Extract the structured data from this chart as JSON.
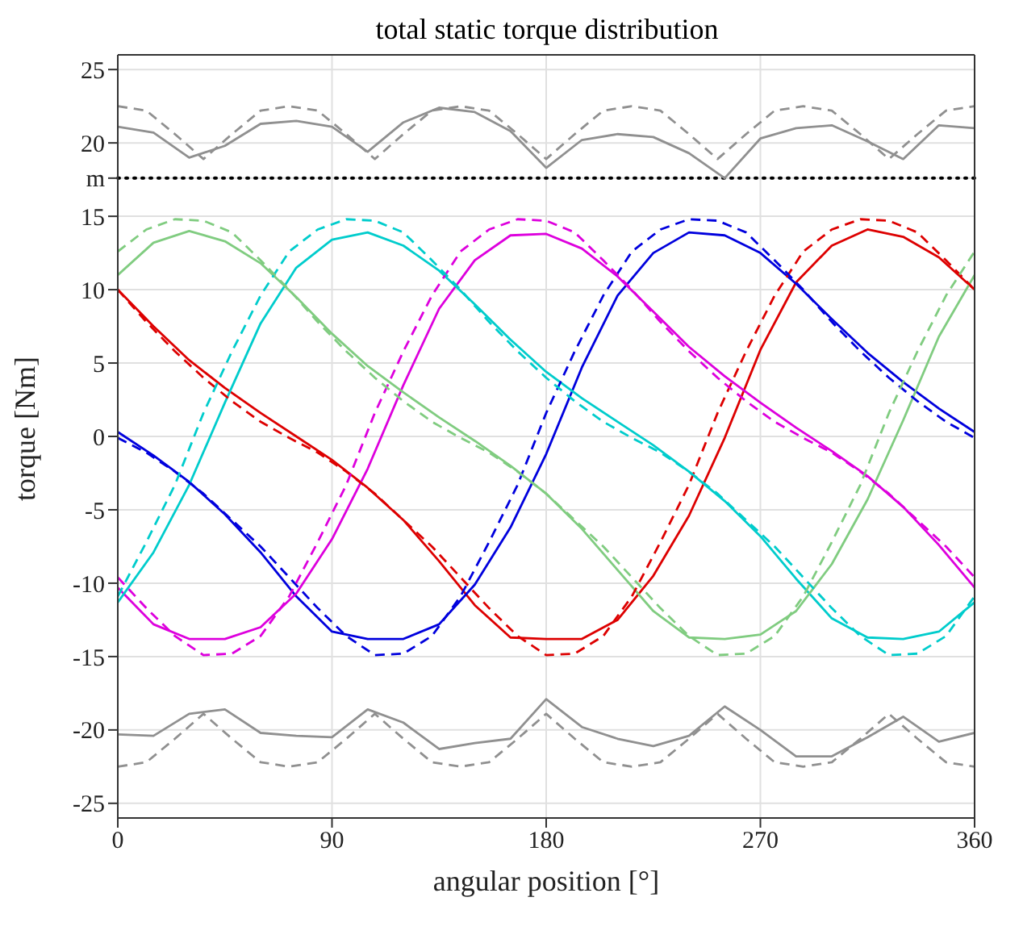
{
  "chart_data": {
    "type": "line",
    "title": "total static torque distribution",
    "xlabel": "angular position [°]",
    "ylabel": "torque [Nm]",
    "x": [
      0,
      15,
      30,
      45,
      60,
      75,
      90,
      105,
      120,
      135,
      150,
      165,
      180,
      195,
      210,
      225,
      240,
      255,
      270,
      285,
      300,
      315,
      330,
      345,
      360
    ],
    "xlim": [
      0,
      360
    ],
    "xticks": [
      0,
      90,
      180,
      270,
      360
    ],
    "ylim": [
      -26,
      26
    ],
    "yticks": [
      -25,
      -20,
      -15,
      -10,
      -5,
      0,
      5,
      10,
      15,
      {
        "value": 17.6,
        "label": "m"
      },
      20,
      25
    ],
    "grid": true,
    "legend": false,
    "marker": "none",
    "ref_lines": [
      {
        "axis": "y",
        "value": 17.6,
        "color": "#000000",
        "line_style": "dotted"
      }
    ],
    "series": [
      {
        "color": "#dd0000",
        "line_style": "solid",
        "values": [
          10,
          7.5,
          5.2,
          3.3,
          1.6,
          0,
          -1.6,
          -3.5,
          -5.7,
          -8.5,
          -11.5,
          -13.7,
          -13.8,
          -13.8,
          -12.5,
          -9.5,
          -5.4,
          -0.1,
          5.9,
          10.5,
          13.0,
          14.1,
          13.6,
          12.2,
          10
        ]
      },
      {
        "color": "#0000dd",
        "line_style": "solid",
        "values": [
          0.3,
          -1.3,
          -3.1,
          -5.3,
          -7.9,
          -10.9,
          -13.3,
          -13.8,
          -13.8,
          -12.8,
          -10.1,
          -6.2,
          -1.2,
          4.7,
          9.6,
          12.5,
          13.9,
          13.7,
          12.5,
          10.4,
          8.0,
          5.7,
          3.7,
          1.9,
          0.3
        ]
      },
      {
        "color": "#dd00dd",
        "line_style": "solid",
        "values": [
          -10.3,
          -12.8,
          -13.8,
          -13.8,
          -13.0,
          -10.7,
          -7.0,
          -2.2,
          3.5,
          8.7,
          12.0,
          13.7,
          13.8,
          12.8,
          10.9,
          8.5,
          6.1,
          4.1,
          2.3,
          0.6,
          -1.0,
          -2.7,
          -4.8,
          -7.4,
          -10.3
        ]
      },
      {
        "color": "#00cccc",
        "line_style": "solid",
        "values": [
          -11.3,
          -7.9,
          -3.3,
          2.3,
          7.7,
          11.5,
          13.4,
          13.9,
          13.0,
          11.3,
          9.0,
          6.6,
          4.4,
          2.6,
          1.0,
          -0.6,
          -2.4,
          -4.4,
          -6.8,
          -9.7,
          -12.4,
          -13.7,
          -13.8,
          -13.3,
          -11.3
        ]
      },
      {
        "color": "#80cc80",
        "line_style": "solid",
        "values": [
          11.0,
          13.2,
          14.0,
          13.3,
          11.8,
          9.5,
          7.0,
          4.8,
          3.0,
          1.3,
          -0.3,
          -2.0,
          -3.9,
          -6.3,
          -9.1,
          -11.9,
          -13.7,
          -13.8,
          -13.5,
          -11.9,
          -8.7,
          -4.3,
          1.1,
          6.8,
          11.0
        ]
      },
      {
        "color": "#dd0000",
        "line_style": "dashed",
        "x": [
          0,
          12,
          24,
          36,
          48,
          60,
          72,
          84,
          96,
          108,
          120,
          132,
          144,
          156,
          168,
          180,
          192,
          204,
          216,
          228,
          240,
          252,
          264,
          276,
          288,
          300,
          312,
          324,
          336,
          348,
          360
        ],
        "values": [
          10,
          7.8,
          5.8,
          4.0,
          2.4,
          1.0,
          -0.1,
          -1.1,
          -2.4,
          -3.9,
          -5.7,
          -7.5,
          -9.6,
          -11.7,
          -13.6,
          -14.9,
          -14.8,
          -13.6,
          -10.9,
          -7.2,
          -3.3,
          1.6,
          5.8,
          9.6,
          12.6,
          14.1,
          14.8,
          14.7,
          13.9,
          12.0,
          10
        ]
      },
      {
        "color": "#0000dd",
        "line_style": "dashed",
        "x": [
          0,
          12,
          24,
          36,
          48,
          60,
          72,
          84,
          96,
          108,
          120,
          132,
          144,
          156,
          168,
          180,
          192,
          204,
          216,
          228,
          240,
          252,
          264,
          276,
          288,
          300,
          312,
          324,
          336,
          348,
          360
        ],
        "values": [
          -0.1,
          -1.1,
          -2.4,
          -3.9,
          -5.7,
          -7.5,
          -9.6,
          -11.7,
          -13.6,
          -14.9,
          -14.8,
          -13.6,
          -10.9,
          -7.2,
          -3.3,
          1.6,
          5.8,
          9.6,
          12.6,
          14.1,
          14.8,
          14.7,
          13.9,
          12.0,
          10,
          7.8,
          5.8,
          4.0,
          2.4,
          1.0,
          -0.1
        ]
      },
      {
        "color": "#dd00dd",
        "line_style": "dashed",
        "x": [
          0,
          12,
          24,
          36,
          48,
          60,
          72,
          84,
          96,
          108,
          120,
          132,
          144,
          156,
          168,
          180,
          192,
          204,
          216,
          228,
          240,
          252,
          264,
          276,
          288,
          300,
          312,
          324,
          336,
          348,
          360
        ],
        "values": [
          -9.6,
          -11.7,
          -13.6,
          -14.9,
          -14.8,
          -13.6,
          -10.9,
          -7.2,
          -3.3,
          1.6,
          5.8,
          9.6,
          12.6,
          14.1,
          14.8,
          14.7,
          13.9,
          12.0,
          10,
          7.8,
          5.8,
          4.0,
          2.4,
          1.0,
          -0.1,
          -1.1,
          -2.4,
          -3.9,
          -5.7,
          -7.5,
          -9.6
        ]
      },
      {
        "color": "#00cccc",
        "line_style": "dashed",
        "x": [
          0,
          12,
          24,
          36,
          48,
          60,
          72,
          84,
          96,
          108,
          120,
          132,
          144,
          156,
          168,
          180,
          192,
          204,
          216,
          228,
          240,
          252,
          264,
          276,
          288,
          300,
          312,
          324,
          336,
          348,
          360
        ],
        "values": [
          -10.9,
          -7.2,
          -3.3,
          1.6,
          5.8,
          9.6,
          12.6,
          14.1,
          14.8,
          14.7,
          13.9,
          12.0,
          10,
          7.8,
          5.8,
          4.0,
          2.4,
          1.0,
          -0.1,
          -1.1,
          -2.4,
          -3.9,
          -5.7,
          -7.5,
          -9.6,
          -11.7,
          -13.6,
          -14.9,
          -14.8,
          -13.6,
          -10.9
        ]
      },
      {
        "color": "#80cc80",
        "line_style": "dashed",
        "x": [
          0,
          12,
          24,
          36,
          48,
          60,
          72,
          84,
          96,
          108,
          120,
          132,
          144,
          156,
          168,
          180,
          192,
          204,
          216,
          228,
          240,
          252,
          264,
          276,
          288,
          300,
          312,
          324,
          336,
          348,
          360
        ],
        "values": [
          12.6,
          14.1,
          14.8,
          14.7,
          13.9,
          12.0,
          10,
          7.8,
          5.8,
          4.0,
          2.4,
          1.0,
          -0.1,
          -1.1,
          -2.4,
          -3.9,
          -5.7,
          -7.5,
          -9.6,
          -11.7,
          -13.6,
          -14.9,
          -14.8,
          -13.6,
          -10.9,
          -7.2,
          -3.3,
          1.6,
          5.8,
          9.6,
          12.6
        ]
      },
      {
        "color": "#909090",
        "line_style": "solid",
        "values": [
          21.1,
          20.7,
          19.0,
          19.8,
          21.3,
          21.5,
          21.1,
          19.4,
          21.4,
          22.4,
          22.1,
          20.8,
          18.3,
          20.2,
          20.6,
          20.4,
          19.3,
          17.6,
          20.3,
          21.0,
          21.2,
          20.1,
          18.9,
          21.2,
          21.0
        ]
      },
      {
        "color": "#909090",
        "line_style": "solid",
        "values": [
          -20.3,
          -20.4,
          -18.9,
          -18.6,
          -20.2,
          -20.4,
          -20.5,
          -18.6,
          -19.5,
          -21.3,
          -20.9,
          -20.6,
          -17.9,
          -19.8,
          -20.6,
          -21.1,
          -20.4,
          -18.4,
          -20.0,
          -21.8,
          -21.8,
          -20.5,
          -19.1,
          -20.8,
          -20.2
        ]
      },
      {
        "color": "#909090",
        "line_style": "dashed",
        "x": [
          0,
          12,
          24,
          36,
          48,
          60,
          72,
          84,
          96,
          108,
          120,
          132,
          144,
          156,
          168,
          180,
          192,
          204,
          216,
          228,
          240,
          252,
          264,
          276,
          288,
          300,
          312,
          324,
          336,
          348,
          360
        ],
        "values": [
          22.5,
          22.2,
          20.6,
          18.9,
          20.6,
          22.2,
          22.5,
          22.2,
          20.6,
          18.9,
          20.6,
          22.2,
          22.5,
          22.2,
          20.6,
          18.9,
          20.6,
          22.2,
          22.5,
          22.2,
          20.6,
          18.9,
          20.6,
          22.2,
          22.5,
          22.2,
          20.6,
          18.9,
          20.6,
          22.2,
          22.5
        ]
      },
      {
        "color": "#909090",
        "line_style": "dashed",
        "x": [
          0,
          12,
          24,
          36,
          48,
          60,
          72,
          84,
          96,
          108,
          120,
          132,
          144,
          156,
          168,
          180,
          192,
          204,
          216,
          228,
          240,
          252,
          264,
          276,
          288,
          300,
          312,
          324,
          336,
          348,
          360
        ],
        "values": [
          -22.5,
          -22.2,
          -20.6,
          -18.9,
          -20.6,
          -22.2,
          -22.5,
          -22.2,
          -20.6,
          -18.9,
          -20.6,
          -22.2,
          -22.5,
          -22.2,
          -20.6,
          -18.9,
          -20.6,
          -22.2,
          -22.5,
          -22.2,
          -20.6,
          -18.9,
          -20.6,
          -22.2,
          -22.5,
          -22.2,
          -20.6,
          -18.9,
          -20.6,
          -22.2,
          -22.5
        ]
      }
    ]
  }
}
